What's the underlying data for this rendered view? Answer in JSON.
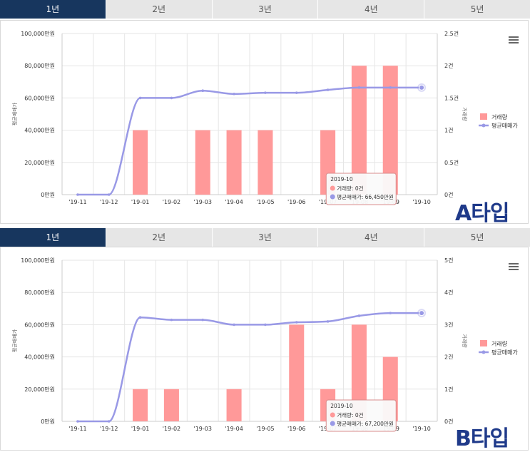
{
  "panels": [
    {
      "tabs": [
        {
          "label": "1년",
          "active": true
        },
        {
          "label": "2년",
          "active": false
        },
        {
          "label": "3년",
          "active": false
        },
        {
          "label": "4년",
          "active": false
        },
        {
          "label": "5년",
          "active": false
        }
      ],
      "type_label": "A타입",
      "tooltip": {
        "date": "2019-10",
        "volume_text": "거래량: 0건",
        "price_text": "평균매매가: 66,450만원"
      },
      "colors": {
        "bar": "#ff9999",
        "line": "#9999e6"
      }
    },
    {
      "tabs": [
        {
          "label": "1년",
          "active": true
        },
        {
          "label": "2년",
          "active": false
        },
        {
          "label": "3년",
          "active": false
        },
        {
          "label": "4년",
          "active": false
        },
        {
          "label": "5년",
          "active": false
        }
      ],
      "type_label": "B타입",
      "tooltip": {
        "date": "2019-10",
        "volume_text": "거래량: 0건",
        "price_text": "평균매매가: 67,200만원"
      },
      "colors": {
        "bar": "#ff9999",
        "line": "#9999e6"
      }
    }
  ],
  "chart_data": [
    {
      "type": "bar",
      "categories": [
        "'19-11",
        "'19-12",
        "'19-01",
        "'19-02",
        "'19-03",
        "'19-04",
        "'19-05",
        "'19-06",
        "'19-07",
        "'19-08",
        "'19-09",
        "'19-10"
      ],
      "series": [
        {
          "name": "거래량",
          "type": "bar",
          "axis": "right",
          "values": [
            0,
            0,
            1,
            0,
            1,
            1,
            1,
            0,
            1,
            2,
            2,
            0
          ]
        },
        {
          "name": "평균매매가",
          "type": "line",
          "axis": "left",
          "values": [
            0,
            0,
            60000,
            60000,
            64500,
            62500,
            63200,
            63200,
            65000,
            66450,
            66450,
            66450
          ]
        }
      ],
      "ylabel": "평균매매가",
      "y2label": "거래량",
      "ylim": [
        0,
        100000
      ],
      "y2lim": [
        0,
        2.5
      ],
      "yticks": [
        "0만원",
        "20,000만원",
        "40,000만원",
        "60,000만원",
        "80,000만원",
        "100,000만원"
      ],
      "y2ticks": [
        "0건",
        "0.5건",
        "1건",
        "1.5건",
        "2건",
        "2.5건"
      ],
      "legend": "right"
    },
    {
      "type": "bar",
      "categories": [
        "'19-11",
        "'19-12",
        "'19-01",
        "'19-02",
        "'19-03",
        "'19-04",
        "'19-05",
        "'19-06",
        "'19-07",
        "'19-08",
        "'19-09",
        "'19-10"
      ],
      "series": [
        {
          "name": "거래량",
          "type": "bar",
          "axis": "right",
          "values": [
            0,
            0,
            1,
            1,
            0,
            1,
            0,
            3,
            1,
            3,
            2,
            0
          ]
        },
        {
          "name": "평균매매가",
          "type": "line",
          "axis": "left",
          "values": [
            0,
            0,
            64500,
            63000,
            63000,
            60000,
            60000,
            61500,
            62000,
            65500,
            67200,
            67200
          ]
        }
      ],
      "ylabel": "평균매매가",
      "y2label": "거래량",
      "ylim": [
        0,
        100000
      ],
      "y2lim": [
        0,
        5
      ],
      "yticks": [
        "0만원",
        "20,000만원",
        "40,000만원",
        "60,000만원",
        "80,000만원",
        "100,000만원"
      ],
      "y2ticks": [
        "0건",
        "1건",
        "2건",
        "3건",
        "4건",
        "5건"
      ],
      "legend": "right"
    }
  ]
}
